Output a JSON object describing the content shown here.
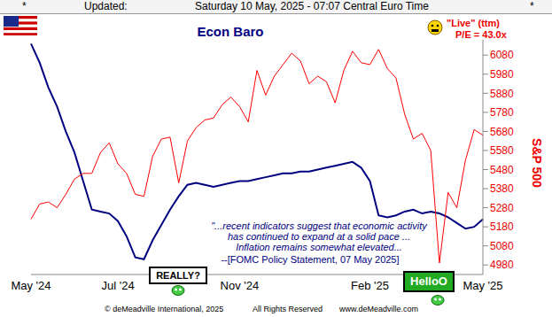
{
  "header": {
    "left_mark": "*",
    "label": "Updated:",
    "timestamp": "Saturday 10 May, 2025 - 07:07 Central Euro Time",
    "right_mark": "*"
  },
  "chart_data": {
    "type": "line",
    "title": "Econ Baro",
    "y_label": "S&P 500",
    "categories": [
      "May '24",
      null,
      null,
      null,
      null,
      null,
      null,
      null,
      null,
      null,
      "Jul '24",
      null,
      null,
      null,
      null,
      null,
      null,
      null,
      null,
      null,
      null,
      null,
      null,
      null,
      "Nov '24",
      null,
      null,
      null,
      null,
      null,
      null,
      null,
      null,
      null,
      null,
      null,
      null,
      null,
      null,
      "Feb '25",
      null,
      null,
      null,
      null,
      null,
      null,
      null,
      null,
      null,
      null,
      null,
      null,
      "May '25"
    ],
    "series": [
      {
        "name": "Econ Baro",
        "color": "#000080",
        "values": [
          6140,
          6040,
          5910,
          5810,
          5680,
          5570,
          5420,
          5270,
          5260,
          5250,
          5210,
          5130,
          5020,
          5010,
          5110,
          5190,
          5270,
          5340,
          5400,
          5410,
          5400,
          5390,
          5400,
          5410,
          5420,
          5420,
          5430,
          5440,
          5450,
          5460,
          5460,
          5470,
          5470,
          5480,
          5490,
          5500,
          5510,
          5520,
          5490,
          5420,
          5240,
          5230,
          5240,
          5260,
          5270,
          5250,
          5260,
          5250,
          5230,
          5200,
          5170,
          5180,
          5220
        ]
      },
      {
        "name": "S&P 500",
        "color": "#ff0000",
        "values": [
          5220,
          5300,
          5310,
          5280,
          5350,
          5430,
          5460,
          5460,
          5570,
          5620,
          5510,
          5460,
          5350,
          5340,
          5550,
          5640,
          5650,
          5410,
          5630,
          5700,
          5740,
          5750,
          5820,
          5860,
          5810,
          5730,
          6000,
          5870,
          5970,
          6030,
          6090,
          6050,
          5930,
          5970,
          5940,
          5830,
          6000,
          6100,
          6040,
          6030,
          6110,
          6010,
          5960,
          5770,
          5640,
          5670,
          5580,
          4990,
          5360,
          5280,
          5530,
          5690,
          5660
        ]
      }
    ],
    "ylim": [
      4930,
      6160
    ],
    "yticks": [
      4980,
      5080,
      5180,
      5280,
      5380,
      5480,
      5580,
      5680,
      5780,
      5880,
      5980,
      6080
    ],
    "grid": false,
    "annotations": {
      "live_label": "\"Live\" (ttm)",
      "pe": "P/E = 43.0x",
      "quote": [
        "\"...recent indicators suggest that economic activity",
        "has continued to expand at a solid pace ...",
        "Inflation remains somewhat elevated..."
      ],
      "source": "--[FOMC Policy Statement, 07 May 2025]",
      "signs": [
        "REALLY?",
        "HelloO"
      ]
    }
  },
  "footer": [
    "© deMeadville International, 2025",
    "All Rights Reserved",
    "www.deMeadville.com"
  ]
}
